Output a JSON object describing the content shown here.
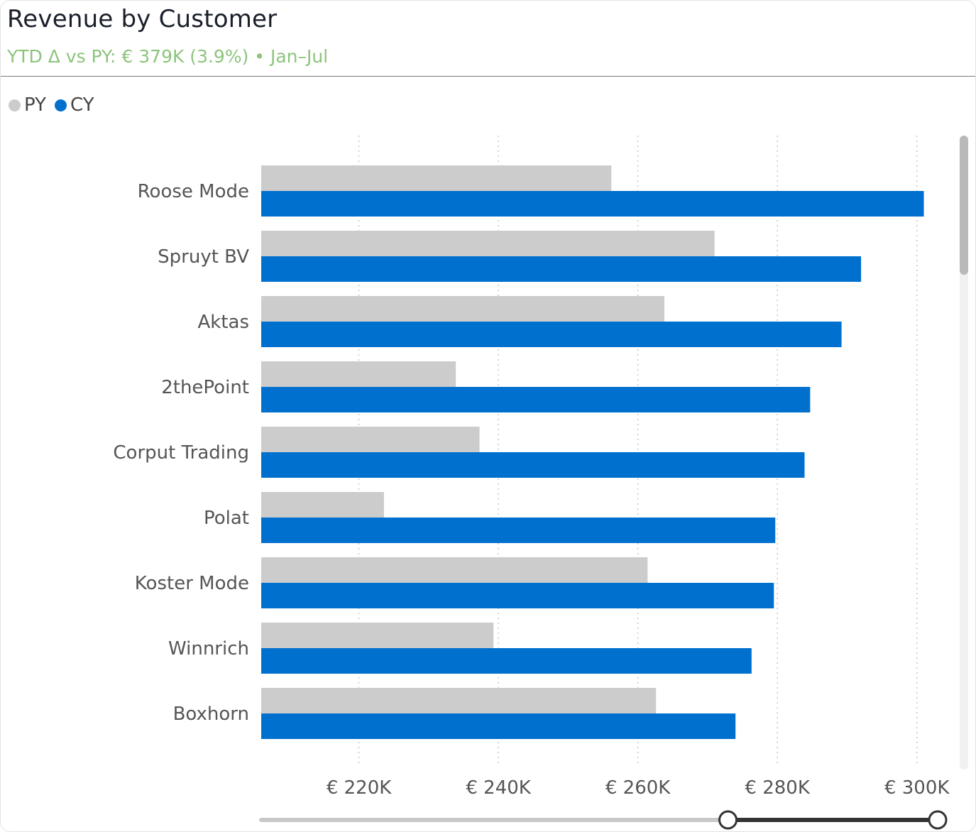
{
  "header": {
    "title": "Revenue by Customer",
    "subtitle": "YTD Δ vs PY: € 379K (3.9%) • Jan–Jul"
  },
  "legend": [
    {
      "label": "PY",
      "color": "#cccccc"
    },
    {
      "label": "CY",
      "color": "#0070cf"
    }
  ],
  "chart_data": {
    "type": "bar",
    "orientation": "horizontal",
    "title": "Revenue by Customer",
    "categories": [
      "Roose Mode",
      "Spruyt BV",
      "Aktas",
      "2thePoint",
      "Corput Trading",
      "Polat",
      "Koster Mode",
      "Winnrich",
      "Boxhorn"
    ],
    "series": [
      {
        "name": "PY",
        "color": "#cccccc",
        "values": [
          256200,
          271000,
          263800,
          233900,
          237300,
          223600,
          261400,
          239300,
          262600
        ]
      },
      {
        "name": "CY",
        "color": "#0070cf",
        "values": [
          301000,
          292000,
          289200,
          284700,
          283900,
          279700,
          279500,
          276300,
          274000
        ]
      }
    ],
    "xlim": [
      206000,
      304000
    ],
    "xticks": [
      220000,
      240000,
      260000,
      280000,
      300000
    ],
    "xtick_labels": [
      "€ 220K",
      "€ 240K",
      "€ 260K",
      "€ 280K",
      "€ 300K"
    ],
    "grid": true,
    "legend_position": "top-left"
  },
  "scrollbar": {
    "vertical_visible_fraction": 0.22,
    "zoom_slider_range": [
      0.69,
      1.0
    ]
  }
}
